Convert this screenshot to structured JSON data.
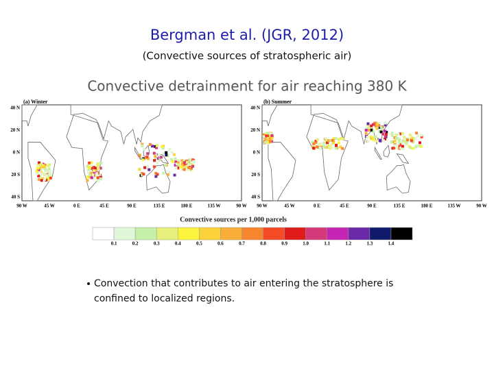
{
  "header": {
    "title": "Bergman et al. (JGR, 2012)",
    "subtitle": "(Convective sources of stratospheric air)"
  },
  "figure": {
    "title": "Convective detrainment for air reaching 380 K",
    "panels": [
      {
        "label": "(a) Winter",
        "lat_labels": [
          "40 N",
          "20 N",
          "0 N",
          "20 S",
          "40 S"
        ],
        "lon_labels": [
          "90 W",
          "45 W",
          "0 E",
          "45 E",
          "90 E",
          "135 E",
          "180 E",
          "135 W",
          "90 W"
        ]
      },
      {
        "label": "(b) Summer",
        "lat_labels": [
          "40 N",
          "20 N",
          "0 N",
          "20 S",
          "40 S"
        ],
        "lon_labels": [
          "90 W",
          "45 W",
          "0 E",
          "45 E",
          "90 E",
          "135 E",
          "180 E",
          "135 W",
          "90 W"
        ]
      }
    ],
    "colorbar": {
      "label": "Convective sources per 1,000 parcels",
      "colors": [
        "#ffffff",
        "#e0f7d8",
        "#c6efa8",
        "#e4f07a",
        "#fbf33c",
        "#fcd23a",
        "#fbad3a",
        "#f8862f",
        "#f44a25",
        "#e01b1b",
        "#d43a7a",
        "#c624b4",
        "#6a2aa8",
        "#101a6a",
        "#000000"
      ],
      "ticks": [
        "0.1",
        "0.2",
        "0.3",
        "0.4",
        "0.5",
        "0.6",
        "0.7",
        "0.8",
        "0.9",
        "1.0",
        "1.1",
        "1.2",
        "1.3",
        "1.4"
      ]
    }
  },
  "bullets": [
    "Convection that contributes to air entering the stratosphere is confined to localized regions."
  ]
}
